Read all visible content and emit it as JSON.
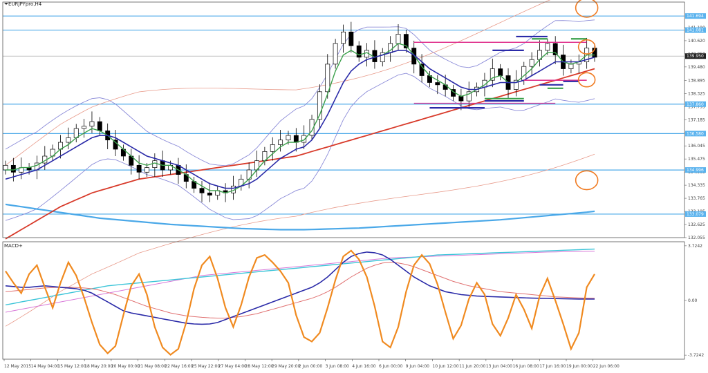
{
  "chart_title": "EURJPYpro,H4",
  "macd_title": "MACD+",
  "chart_data": [
    {
      "type": "line",
      "pane": "price",
      "title": "EURJPYpro,H4",
      "ylim": [
        132.055,
        142.3
      ],
      "y_ticks": [
        "141.190",
        "140.620",
        "140.050",
        "139.480",
        "138.895",
        "138.325",
        "137.755",
        "137.185",
        "136.615",
        "136.045",
        "135.475",
        "134.905",
        "134.335",
        "133.765",
        "133.195",
        "132.625",
        "132.055"
      ],
      "current_price": "139.950",
      "highlighted_levels": [
        "141.694",
        "141.081",
        "137.860",
        "136.580",
        "134.996",
        "133.079"
      ],
      "horizontal_levels": [
        141.694,
        141.081,
        137.86,
        136.58,
        134.996,
        133.079
      ],
      "x_labels": [
        "12 May 2015",
        "14 May 04:00",
        "15 May 12:00",
        "18 May 20:00",
        "20 May 00:00",
        "21 May 08:00",
        "22 May 16:00",
        "25 May 22:00",
        "27 May 04:00",
        "28 May 12:00",
        "29 May 20:00",
        "2 Jun 00:00",
        "3 Jun 08:00",
        "4 Jun 16:00",
        "6 Jun 00:00",
        "9 Jun 04:00",
        "10 Jun 12:00",
        "11 Jun 20:00",
        "13 Jun 04:00",
        "16 Jun 08:00",
        "17 Jun 16:00",
        "19 Jun 00:00",
        "22 Jun 06:00"
      ],
      "closes": [
        135.2,
        134.9,
        135.1,
        135.0,
        135.3,
        135.6,
        135.9,
        136.2,
        136.4,
        136.8,
        136.9,
        137.1,
        136.7,
        136.3,
        135.9,
        135.6,
        135.2,
        134.9,
        135.1,
        135.4,
        135.0,
        135.2,
        134.8,
        134.5,
        134.2,
        134.0,
        133.9,
        134.1,
        134.0,
        134.3,
        134.6,
        135.0,
        135.4,
        135.8,
        136.1,
        136.3,
        136.5,
        136.2,
        136.5,
        137.2,
        138.4,
        139.6,
        140.5,
        141.0,
        140.4,
        139.9,
        140.2,
        139.7,
        140.1,
        140.5,
        140.9,
        140.3,
        139.6,
        139.1,
        138.8,
        138.7,
        138.5,
        138.2,
        138.0,
        138.4,
        138.6,
        138.9,
        139.4,
        139.1,
        138.5,
        138.9,
        139.5,
        139.8,
        140.2,
        140.5,
        140.0,
        139.4,
        139.6,
        139.7,
        140.3,
        139.9
      ],
      "ma_green": [
        135.0,
        135.0,
        135.1,
        135.1,
        135.2,
        135.4,
        135.6,
        135.9,
        136.1,
        136.4,
        136.6,
        136.8,
        136.7,
        136.5,
        136.2,
        135.9,
        135.6,
        135.3,
        135.2,
        135.3,
        135.2,
        135.2,
        135.0,
        134.8,
        134.5,
        134.3,
        134.1,
        134.1,
        134.0,
        134.1,
        134.3,
        134.6,
        135.0,
        135.4,
        135.7,
        136.0,
        136.2,
        136.2,
        136.3,
        136.7,
        137.4,
        138.3,
        139.3,
        140.0,
        140.2,
        140.0,
        140.1,
        139.9,
        140.0,
        140.2,
        140.5,
        140.4,
        140.0,
        139.5,
        139.1,
        138.9,
        138.7,
        138.4,
        138.2,
        138.3,
        138.5,
        138.7,
        139.0,
        139.1,
        138.8,
        138.8,
        139.1,
        139.4,
        139.8,
        140.1,
        140.1,
        139.7,
        139.6,
        139.7,
        140.0,
        140.0
      ],
      "ma_blue": [
        134.6,
        134.7,
        134.8,
        134.9,
        135.0,
        135.2,
        135.4,
        135.6,
        135.8,
        136.0,
        136.2,
        136.4,
        136.5,
        136.5,
        136.4,
        136.2,
        136.0,
        135.8,
        135.6,
        135.5,
        135.4,
        135.3,
        135.2,
        135.0,
        134.8,
        134.6,
        134.4,
        134.3,
        134.2,
        134.2,
        134.3,
        134.4,
        134.6,
        134.9,
        135.2,
        135.5,
        135.7,
        135.9,
        136.0,
        136.3,
        136.8,
        137.4,
        138.1,
        138.8,
        139.3,
        139.6,
        139.8,
        139.9,
        140.0,
        140.1,
        140.2,
        140.2,
        140.0,
        139.7,
        139.4,
        139.2,
        139.0,
        138.8,
        138.6,
        138.5,
        138.5,
        138.6,
        138.7,
        138.8,
        138.8,
        138.8,
        138.9,
        139.1,
        139.3,
        139.5,
        139.7,
        139.7,
        139.7,
        139.7,
        139.8,
        139.9
      ],
      "ma_red": [
        132.0,
        132.2,
        132.4,
        132.6,
        132.8,
        133.0,
        133.2,
        133.4,
        133.55,
        133.7,
        133.85,
        134.0,
        134.1,
        134.2,
        134.3,
        134.4,
        134.5,
        134.6,
        134.65,
        134.7,
        134.75,
        134.8,
        134.85,
        134.9,
        134.95,
        135.0,
        135.05,
        135.1,
        135.15,
        135.2,
        135.25,
        135.3,
        135.35,
        135.4,
        135.45,
        135.5,
        135.55,
        135.6,
        135.7,
        135.8,
        135.9,
        136.0,
        136.1,
        136.2,
        136.3,
        136.4,
        136.5,
        136.6,
        136.7,
        136.8,
        136.9,
        137.0,
        137.1,
        137.2,
        137.3,
        137.4,
        137.5,
        137.6,
        137.7,
        137.8,
        137.9,
        138.0,
        138.1,
        138.2,
        138.3,
        138.4,
        138.5,
        138.6,
        138.7,
        138.8,
        138.9,
        139.0,
        139.1,
        139.2,
        139.3,
        139.4
      ],
      "ma_cyan": [
        133.5,
        133.45,
        133.4,
        133.35,
        133.3,
        133.25,
        133.2,
        133.15,
        133.1,
        133.05,
        133.0,
        132.95,
        132.9,
        132.87,
        132.84,
        132.81,
        132.78,
        132.75,
        132.72,
        132.69,
        132.66,
        132.63,
        132.61,
        132.59,
        132.57,
        132.55,
        132.53,
        132.51,
        132.49,
        132.47,
        132.45,
        132.44,
        132.43,
        132.42,
        132.41,
        132.4,
        132.4,
        132.4,
        132.4,
        132.41,
        132.42,
        132.43,
        132.44,
        132.45,
        132.46,
        132.47,
        132.49,
        132.51,
        132.53,
        132.55,
        132.57,
        132.59,
        132.61,
        132.63,
        132.65,
        132.67,
        132.69,
        132.71,
        132.73,
        132.75,
        132.77,
        132.79,
        132.81,
        132.83,
        132.86,
        132.89,
        132.92,
        132.95,
        132.98,
        133.01,
        133.04,
        133.07,
        133.1,
        133.13,
        133.16,
        133.2
      ]
    },
    {
      "type": "line",
      "pane": "indicator",
      "title": "MACD+",
      "ylim": [
        -4.0,
        4.0
      ],
      "y_ticks": [
        "3.7242",
        "0.00",
        "-3.7242"
      ],
      "series": [
        {
          "values": [
            2.0,
            1.2,
            0.5,
            1.8,
            2.4,
            0.9,
            -0.5,
            1.2,
            2.6,
            1.7,
            0.2,
            -1.5,
            -3.0,
            -3.6,
            -3.1,
            -1.0,
            1.0,
            1.8,
            0.4,
            -1.8,
            -3.2,
            -3.7,
            -3.3,
            -1.5,
            0.8,
            2.4,
            3.0,
            1.5,
            -0.5,
            -1.8,
            -0.3,
            1.6,
            2.9,
            3.1,
            2.6,
            2.0,
            1.2,
            -1.0,
            -2.5,
            -2.8,
            -2.2,
            -0.5,
            1.4,
            3.0,
            3.4,
            2.8,
            1.6,
            -0.4,
            -2.8,
            -3.2,
            -1.8,
            0.6,
            2.4,
            3.1,
            2.5,
            1.1,
            -0.8,
            -2.6,
            -1.7,
            0.1,
            1.2,
            0.4,
            -1.6,
            -2.4,
            -1.2,
            0.4,
            -0.6,
            -1.9,
            0.3,
            1.5,
            0.0,
            -1.6,
            -3.3,
            -2.2,
            0.9,
            1.8
          ]
        },
        {
          "values": [
            1.0,
            0.95,
            0.9,
            0.9,
            0.95,
            1.0,
            0.95,
            0.9,
            0.85,
            0.8,
            0.7,
            0.5,
            0.2,
            -0.1,
            -0.4,
            -0.7,
            -0.85,
            -0.95,
            -1.05,
            -1.15,
            -1.25,
            -1.35,
            -1.45,
            -1.55,
            -1.6,
            -1.62,
            -1.6,
            -1.5,
            -1.3,
            -1.1,
            -0.9,
            -0.7,
            -0.5,
            -0.3,
            -0.1,
            0.1,
            0.3,
            0.5,
            0.7,
            0.9,
            1.2,
            1.6,
            2.1,
            2.6,
            3.0,
            3.2,
            3.3,
            3.25,
            3.1,
            2.8,
            2.4,
            2.0,
            1.6,
            1.3,
            1.0,
            0.8,
            0.6,
            0.5,
            0.4,
            0.35,
            0.3,
            0.28,
            0.26,
            0.24,
            0.22,
            0.2,
            0.18,
            0.16,
            0.15,
            0.14,
            0.13,
            0.12,
            0.11,
            0.1,
            0.1,
            0.1
          ]
        },
        {
          "values": [
            0.6,
            0.65,
            0.7,
            0.75,
            0.8,
            0.85,
            0.88,
            0.9,
            0.9,
            0.88,
            0.85,
            0.8,
            0.7,
            0.55,
            0.4,
            0.2,
            0.0,
            -0.2,
            -0.4,
            -0.55,
            -0.7,
            -0.85,
            -0.95,
            -1.05,
            -1.1,
            -1.15,
            -1.18,
            -1.2,
            -1.2,
            -1.15,
            -1.1,
            -1.0,
            -0.9,
            -0.75,
            -0.6,
            -0.45,
            -0.3,
            -0.15,
            0.0,
            0.15,
            0.35,
            0.6,
            0.9,
            1.25,
            1.6,
            1.9,
            2.2,
            2.4,
            2.55,
            2.6,
            2.55,
            2.45,
            2.3,
            2.1,
            1.9,
            1.7,
            1.5,
            1.3,
            1.15,
            1.0,
            0.9,
            0.8,
            0.7,
            0.6,
            0.55,
            0.5,
            0.45,
            0.4,
            0.35,
            0.3,
            0.25,
            0.22,
            0.2,
            0.18,
            0.16,
            0.15
          ]
        },
        {
          "values": [
            -0.3,
            -0.2,
            -0.1,
            0.0,
            0.1,
            0.2,
            0.3,
            0.4,
            0.5,
            0.6,
            0.7,
            0.8,
            0.9,
            1.0,
            1.05,
            1.1,
            1.15,
            1.2,
            1.25,
            1.3,
            1.35,
            1.4,
            1.45,
            1.5,
            1.55,
            1.6,
            1.65,
            1.7,
            1.75,
            1.8,
            1.85,
            1.9,
            1.95,
            2.0,
            2.05,
            2.1,
            2.15,
            2.2,
            2.25,
            2.3,
            2.35,
            2.4,
            2.45,
            2.5,
            2.55,
            2.6,
            2.65,
            2.7,
            2.75,
            2.8,
            2.85,
            2.9,
            2.95,
            3.0,
            3.05,
            3.1,
            3.12,
            3.14,
            3.16,
            3.18,
            3.2,
            3.22,
            3.24,
            3.26,
            3.28,
            3.3,
            3.32,
            3.34,
            3.36,
            3.38,
            3.4,
            3.42,
            3.44,
            3.46,
            3.48,
            3.5
          ]
        },
        {
          "values": [
            -0.8,
            -0.7,
            -0.6,
            -0.5,
            -0.4,
            -0.3,
            -0.2,
            -0.1,
            0.0,
            0.1,
            0.2,
            0.3,
            0.4,
            0.5,
            0.6,
            0.7,
            0.8,
            0.9,
            1.0,
            1.1,
            1.2,
            1.3,
            1.4,
            1.5,
            1.6,
            1.7,
            1.75,
            1.8,
            1.85,
            1.9,
            1.95,
            2.0,
            2.05,
            2.1,
            2.15,
            2.2,
            2.25,
            2.3,
            2.35,
            2.4,
            2.45,
            2.5,
            2.55,
            2.6,
            2.65,
            2.7,
            2.75,
            2.8,
            2.85,
            2.9,
            2.92,
            2.94,
            2.96,
            2.98,
            3.0,
            3.02,
            3.04,
            3.06,
            3.08,
            3.1,
            3.12,
            3.14,
            3.16,
            3.18,
            3.2,
            3.22,
            3.24,
            3.26,
            3.28,
            3.3,
            3.31,
            3.32,
            3.33,
            3.34,
            3.35,
            3.36
          ]
        }
      ]
    }
  ],
  "colors": {
    "axis": "#555555",
    "level_line": "#4aa8e8",
    "level_badge": "#5bb3ee",
    "current_badge": "#ffffff",
    "magenta": "#e0338e",
    "navy": "#2a2aa8",
    "green": "#3aa04a",
    "orange": "#f07a20",
    "red": "#d83a2a",
    "light_red": "#e89a8a",
    "lavender": "#8a8ad8",
    "candle_bull": "#ffffff",
    "candle_bear": "#000000",
    "macd_orange": "#f08a20",
    "macd_blue": "#2a2aa8",
    "macd_red": "#e07070",
    "macd_cyan": "#3ac4d8",
    "macd_pink": "#d878d8"
  }
}
